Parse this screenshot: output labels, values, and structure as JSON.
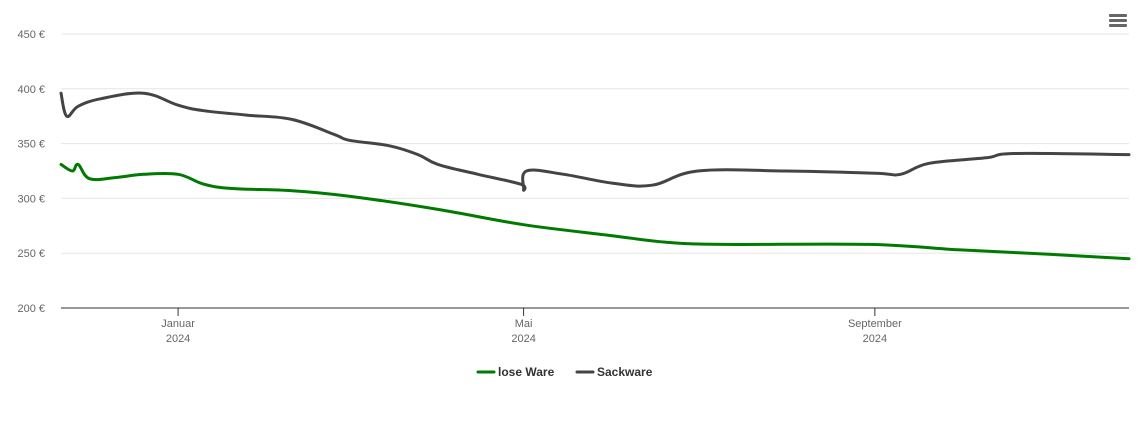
{
  "menu": {
    "icon": "hamburger-menu-icon"
  },
  "chart_data": {
    "type": "line",
    "title": "",
    "xlabel": "",
    "ylabel": "",
    "ylim": [
      200,
      450
    ],
    "yticks": [
      {
        "value": 200,
        "label": "200 €"
      },
      {
        "value": 250,
        "label": "250 €"
      },
      {
        "value": 300,
        "label": "300 €"
      },
      {
        "value": 350,
        "label": "350 €"
      },
      {
        "value": 400,
        "label": "400 €"
      },
      {
        "value": 450,
        "label": "450 €"
      }
    ],
    "xlim": [
      "2023-11-21",
      "2024-11-29"
    ],
    "xticks": [
      {
        "date": "2024-01-01",
        "month": "Januar",
        "year": "2024"
      },
      {
        "date": "2024-05-01",
        "month": "Mai",
        "year": "2024"
      },
      {
        "date": "2024-09-01",
        "month": "September",
        "year": "2024"
      }
    ],
    "grid": true,
    "legend": "bottom-center",
    "series": [
      {
        "name": "lose Ware",
        "color": "#007a00",
        "points": [
          [
            "2023-11-21",
            331
          ],
          [
            "2023-11-25",
            325
          ],
          [
            "2023-11-27",
            331
          ],
          [
            "2023-12-01",
            318
          ],
          [
            "2023-12-10",
            319
          ],
          [
            "2023-12-20",
            322
          ],
          [
            "2024-01-01",
            322
          ],
          [
            "2024-01-10",
            313
          ],
          [
            "2024-01-20",
            309
          ],
          [
            "2024-02-10",
            307
          ],
          [
            "2024-03-01",
            302
          ],
          [
            "2024-04-01",
            290
          ],
          [
            "2024-05-01",
            276
          ],
          [
            "2024-06-01",
            266
          ],
          [
            "2024-06-20",
            260
          ],
          [
            "2024-07-10",
            258
          ],
          [
            "2024-08-30",
            258
          ],
          [
            "2024-10-01",
            253
          ],
          [
            "2024-11-01",
            249
          ],
          [
            "2024-11-29",
            245
          ]
        ]
      },
      {
        "name": "Sackware",
        "color": "#444444",
        "points": [
          [
            "2023-11-21",
            396
          ],
          [
            "2023-11-23",
            375
          ],
          [
            "2023-11-27",
            384
          ],
          [
            "2023-12-05",
            391
          ],
          [
            "2023-12-20",
            396
          ],
          [
            "2024-01-01",
            385
          ],
          [
            "2024-01-10",
            380
          ],
          [
            "2024-01-25",
            376
          ],
          [
            "2024-02-10",
            372
          ],
          [
            "2024-02-25",
            358
          ],
          [
            "2024-03-01",
            353
          ],
          [
            "2024-03-15",
            348
          ],
          [
            "2024-03-25",
            340
          ],
          [
            "2024-04-01",
            331
          ],
          [
            "2024-04-15",
            322
          ],
          [
            "2024-04-30",
            313
          ],
          [
            "2024-05-01",
            308
          ],
          [
            "2024-05-02",
            325
          ],
          [
            "2024-05-15",
            322
          ],
          [
            "2024-06-01",
            314
          ],
          [
            "2024-06-15",
            312
          ],
          [
            "2024-07-01",
            325
          ],
          [
            "2024-08-01",
            325
          ],
          [
            "2024-09-01",
            323
          ],
          [
            "2024-09-10",
            322
          ],
          [
            "2024-09-20",
            332
          ],
          [
            "2024-10-10",
            337
          ],
          [
            "2024-10-20",
            341
          ],
          [
            "2024-11-29",
            340
          ]
        ]
      }
    ]
  }
}
